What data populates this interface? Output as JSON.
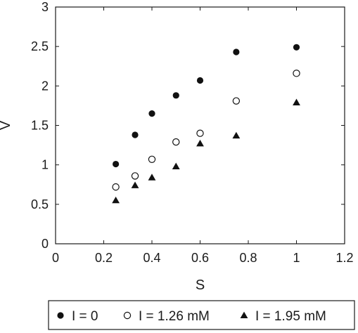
{
  "chart_data": {
    "type": "scatter",
    "title": "",
    "xlabel": "S",
    "ylabel": "V",
    "xlim": [
      0,
      1.2
    ],
    "ylim": [
      0,
      3
    ],
    "xticks": [
      0,
      0.2,
      0.4,
      0.6,
      0.8,
      1,
      1.2
    ],
    "xtick_labels": [
      "0",
      "0.2",
      "0.4",
      "0.6",
      "0.8",
      "1",
      "1.2"
    ],
    "yticks": [
      0,
      0.5,
      1,
      1.5,
      2,
      2.5,
      3
    ],
    "ytick_labels": [
      "0",
      "0.5",
      "1",
      "1.5",
      "2",
      "2.5",
      "3"
    ],
    "grid": false,
    "legend_position": "bottom",
    "series": [
      {
        "name": "I = 0",
        "marker": "filled-circle",
        "color": "#111111",
        "x": [
          0.25,
          0.33,
          0.4,
          0.5,
          0.6,
          0.75,
          1
        ],
        "y": [
          1.01,
          1.38,
          1.65,
          1.88,
          2.07,
          2.43,
          2.49
        ]
      },
      {
        "name": "I = 1.26 mM",
        "marker": "open-circle",
        "color": "#111111",
        "x": [
          0.25,
          0.33,
          0.4,
          0.5,
          0.6,
          0.75,
          1
        ],
        "y": [
          0.72,
          0.86,
          1.07,
          1.29,
          1.4,
          1.81,
          2.16
        ]
      },
      {
        "name": "I = 1.95 mM",
        "marker": "filled-triangle",
        "color": "#111111",
        "x": [
          0.25,
          0.33,
          0.4,
          0.5,
          0.6,
          0.75,
          1
        ],
        "y": [
          0.55,
          0.74,
          0.84,
          0.98,
          1.27,
          1.37,
          1.79
        ]
      }
    ]
  }
}
